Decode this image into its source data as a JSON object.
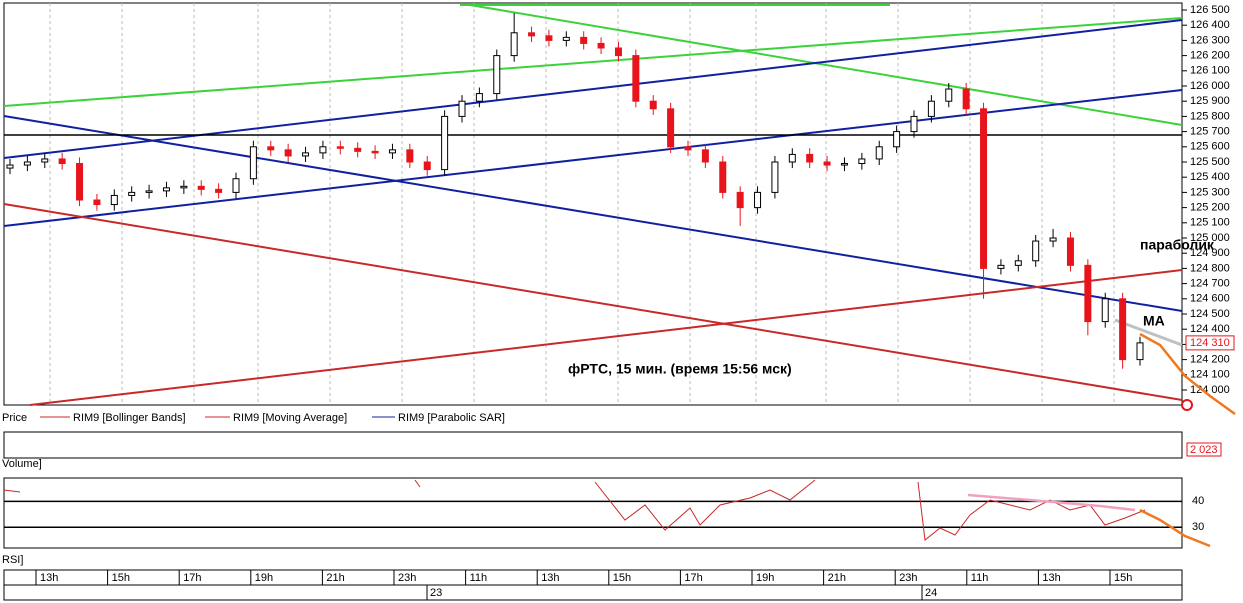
{
  "chart_data": {
    "type": "candlestick",
    "ylim": [
      124000,
      126500
    ],
    "yticks": [
      {
        "value": 124000,
        "label": "124 000"
      },
      {
        "value": 124100,
        "label": "124 100"
      },
      {
        "value": 124200,
        "label": "124 200"
      },
      {
        "value": 124300,
        "label": "124 300"
      },
      {
        "value": 124400,
        "label": "124 400"
      },
      {
        "value": 124500,
        "label": "124 500"
      },
      {
        "value": 124600,
        "label": "124 600"
      },
      {
        "value": 124700,
        "label": "124 700"
      },
      {
        "value": 124800,
        "label": "124 800"
      },
      {
        "value": 124900,
        "label": "124 900"
      },
      {
        "value": 125000,
        "label": "125 000"
      },
      {
        "value": 125100,
        "label": "125 100"
      },
      {
        "value": 125200,
        "label": "125 200"
      },
      {
        "value": 125300,
        "label": "125 300"
      },
      {
        "value": 125400,
        "label": "125 400"
      },
      {
        "value": 125500,
        "label": "125 500"
      },
      {
        "value": 125600,
        "label": "125 600"
      },
      {
        "value": 125700,
        "label": "125 700"
      },
      {
        "value": 125800,
        "label": "125 800"
      },
      {
        "value": 125900,
        "label": "125 900"
      },
      {
        "value": 126000,
        "label": "126 000"
      },
      {
        "value": 126100,
        "label": "126 100"
      },
      {
        "value": 126200,
        "label": "126 200"
      },
      {
        "value": 126300,
        "label": "126 300"
      },
      {
        "value": 126400,
        "label": "126 400"
      },
      {
        "value": 126500,
        "label": "126 500"
      }
    ],
    "last_price": {
      "value": 124310,
      "label": "124 310"
    },
    "up_color": "#ffffff",
    "down_color": "#e8141c",
    "candles": [
      [
        125460,
        125520,
        125420,
        125480
      ],
      [
        125480,
        125540,
        125440,
        125500
      ],
      [
        125500,
        125560,
        125460,
        125520
      ],
      [
        125520,
        125560,
        125450,
        125490
      ],
      [
        125490,
        125530,
        125210,
        125250
      ],
      [
        125250,
        125290,
        125180,
        125220
      ],
      [
        125220,
        125320,
        125180,
        125280
      ],
      [
        125280,
        125340,
        125240,
        125300
      ],
      [
        125300,
        125350,
        125260,
        125310
      ],
      [
        125310,
        125370,
        125270,
        125330
      ],
      [
        125330,
        125380,
        125290,
        125340
      ],
      [
        125340,
        125380,
        125280,
        125320
      ],
      [
        125320,
        125360,
        125260,
        125300
      ],
      [
        125300,
        125430,
        125260,
        125390
      ],
      [
        125390,
        125640,
        125350,
        125600
      ],
      [
        125600,
        125640,
        125540,
        125580
      ],
      [
        125580,
        125620,
        125500,
        125540
      ],
      [
        125540,
        125600,
        125500,
        125560
      ],
      [
        125560,
        125640,
        125520,
        125600
      ],
      [
        125600,
        125640,
        125550,
        125590
      ],
      [
        125590,
        125630,
        125530,
        125570
      ],
      [
        125570,
        125610,
        125520,
        125560
      ],
      [
        125560,
        125620,
        125520,
        125580
      ],
      [
        125580,
        125620,
        125460,
        125500
      ],
      [
        125500,
        125540,
        125410,
        125450
      ],
      [
        125450,
        125840,
        125410,
        125800
      ],
      [
        125800,
        125940,
        125760,
        125900
      ],
      [
        125900,
        125990,
        125860,
        125950
      ],
      [
        125950,
        126240,
        125910,
        126200
      ],
      [
        126200,
        126480,
        126160,
        126350
      ],
      [
        126350,
        126390,
        126290,
        126330
      ],
      [
        126330,
        126370,
        126260,
        126300
      ],
      [
        126300,
        126360,
        126260,
        126320
      ],
      [
        126320,
        126360,
        126240,
        126280
      ],
      [
        126280,
        126320,
        126210,
        126250
      ],
      [
        126250,
        126290,
        126160,
        126200
      ],
      [
        126200,
        126240,
        125860,
        125900
      ],
      [
        125900,
        125940,
        125810,
        125850
      ],
      [
        125850,
        125890,
        125560,
        125600
      ],
      [
        125600,
        125640,
        125540,
        125580
      ],
      [
        125580,
        125620,
        125460,
        125500
      ],
      [
        125500,
        125540,
        125260,
        125300
      ],
      [
        125300,
        125340,
        125080,
        125200
      ],
      [
        125200,
        125340,
        125160,
        125300
      ],
      [
        125300,
        125540,
        125260,
        125500
      ],
      [
        125500,
        125590,
        125460,
        125550
      ],
      [
        125550,
        125590,
        125460,
        125500
      ],
      [
        125500,
        125540,
        125440,
        125480
      ],
      [
        125480,
        125530,
        125440,
        125490
      ],
      [
        125490,
        125560,
        125450,
        125520
      ],
      [
        125520,
        125640,
        125480,
        125600
      ],
      [
        125600,
        125740,
        125560,
        125700
      ],
      [
        125700,
        125840,
        125660,
        125800
      ],
      [
        125800,
        125940,
        125760,
        125900
      ],
      [
        125900,
        126020,
        125860,
        125980
      ],
      [
        125980,
        126020,
        125810,
        125850
      ],
      [
        125850,
        125890,
        124600,
        124800
      ],
      [
        124800,
        124860,
        124760,
        124820
      ],
      [
        124820,
        124890,
        124780,
        124850
      ],
      [
        124850,
        125020,
        124810,
        124980
      ],
      [
        124980,
        125060,
        124940,
        125000
      ],
      [
        125000,
        125040,
        124780,
        124820
      ],
      [
        124820,
        124860,
        124360,
        124450
      ],
      [
        124450,
        124640,
        124410,
        124600
      ],
      [
        124600,
        124640,
        124140,
        124200
      ],
      [
        124200,
        124350,
        124160,
        124310
      ]
    ],
    "legend": [
      "Price",
      "RIM9 [Bollinger Bands]",
      "RIM9 [Moving Average]",
      "RIM9 [Parabolic SAR]"
    ],
    "annotations": {
      "title": "фРТС, 15 мин.  (время 15:56 мск)",
      "sar": "параболик",
      "ma": "MA"
    },
    "volume": {
      "label": "Volume]",
      "last": {
        "value": 2023,
        "label": "2 023"
      }
    },
    "rsi": {
      "label": "RSI]",
      "ylim": [
        22,
        49
      ],
      "yticks": [
        30,
        40
      ]
    },
    "x_labels": [
      "13h",
      "15h",
      "17h",
      "19h",
      "21h",
      "23h",
      "11h",
      "13h",
      "15h",
      "17h",
      "19h",
      "21h",
      "23h",
      "11h",
      "13h",
      "15h"
    ],
    "day_labels": [
      "23",
      "24"
    ]
  }
}
